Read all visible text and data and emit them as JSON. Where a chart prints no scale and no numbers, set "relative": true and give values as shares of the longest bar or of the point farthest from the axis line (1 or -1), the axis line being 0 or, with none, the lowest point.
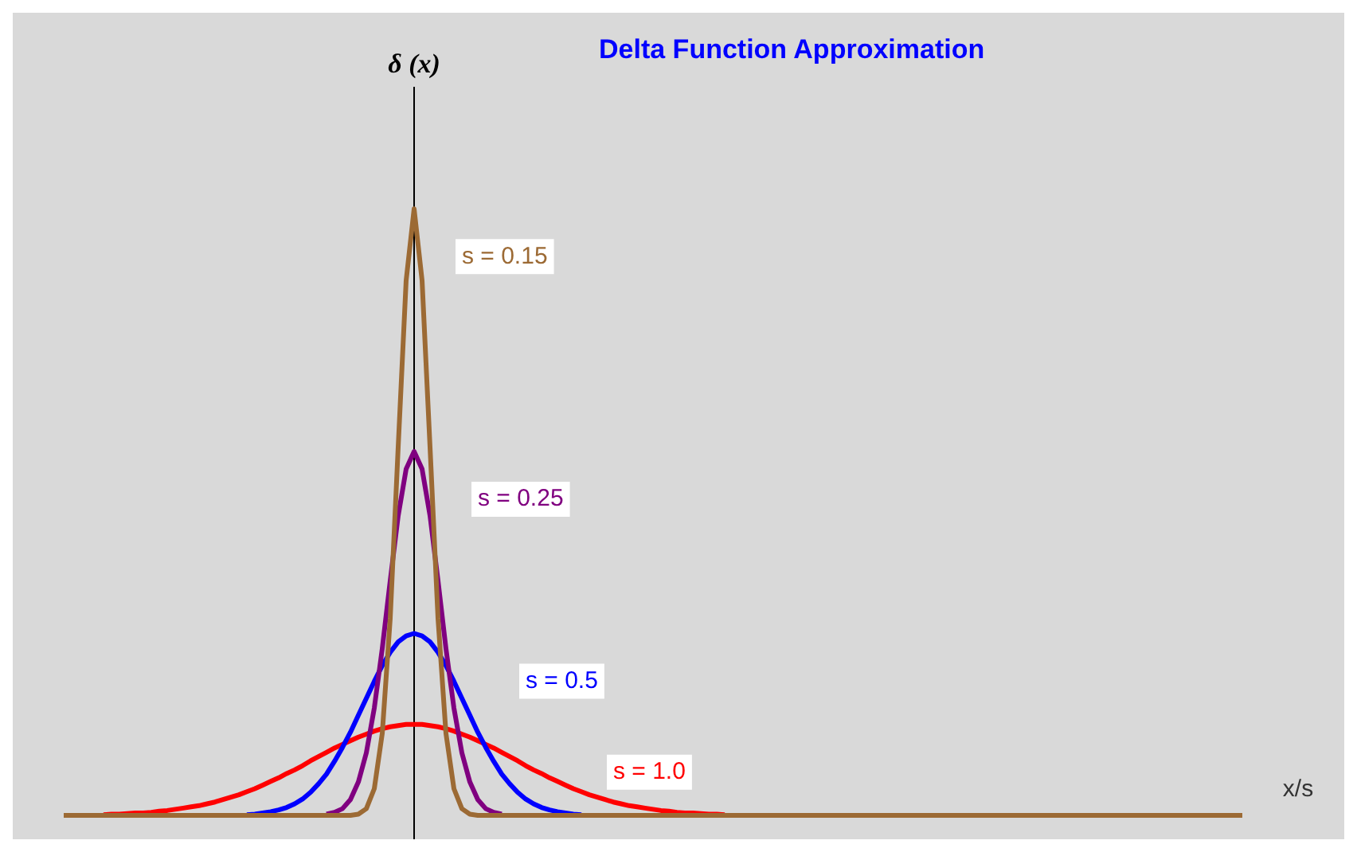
{
  "chart_data": {
    "type": "line",
    "title": "Delta Function Approximation",
    "ylabel": "δ (x)",
    "xlabel": "x/s",
    "relative": true,
    "legend": false,
    "categories": [
      null,
      null,
      null,
      null,
      null,
      null,
      null,
      null,
      null,
      null,
      null,
      null,
      null,
      null,
      null,
      null,
      null,
      null,
      null,
      null,
      null,
      null,
      null,
      null,
      null,
      null,
      null,
      null,
      null,
      null,
      null,
      null,
      null,
      null,
      null,
      null,
      null,
      null,
      null,
      null,
      null,
      null,
      null,
      null,
      null,
      null,
      null,
      null,
      null,
      null,
      null,
      null,
      null,
      null,
      null,
      null,
      null,
      null,
      null,
      null,
      null,
      null,
      null,
      null,
      null,
      null,
      null,
      null,
      null,
      null,
      null,
      null,
      null,
      null,
      null,
      null,
      null,
      null,
      null,
      null,
      null,
      null,
      null,
      null,
      null,
      null,
      null,
      null,
      null,
      null,
      null,
      null,
      null,
      null,
      null,
      null,
      null,
      null,
      null,
      null,
      null,
      null,
      null,
      null,
      null,
      null,
      null,
      null,
      null,
      null,
      null,
      null,
      null,
      null,
      null,
      null,
      null,
      null,
      null,
      null,
      null,
      null,
      null,
      null,
      null,
      null,
      null,
      null,
      null,
      null,
      null,
      null,
      null,
      null,
      null,
      null,
      null,
      null,
      null,
      null,
      null,
      null,
      null,
      null,
      null,
      null,
      null,
      null,
      null
    ],
    "series": [
      {
        "name": "s = 0.15",
        "color": "#9c6a34",
        "values": [
          0,
          0,
          0,
          0,
          0,
          0,
          0,
          0,
          0,
          0,
          0,
          0,
          0,
          0,
          0,
          0,
          0,
          0,
          0,
          0,
          0,
          0,
          0,
          0,
          0,
          0,
          0,
          0,
          0,
          0,
          0,
          0,
          0,
          0,
          0,
          0,
          0,
          0.002,
          0.011,
          0.044,
          0.135,
          0.325,
          0.607,
          0.882,
          1,
          0.882,
          0.607,
          0.325,
          0.135,
          0.044,
          0.011,
          0.002,
          0,
          0,
          0,
          0,
          0,
          0,
          0,
          0,
          0,
          0,
          0,
          0,
          0,
          0,
          0,
          0,
          0,
          0,
          0,
          0,
          0,
          0,
          0,
          0,
          0,
          0,
          0,
          0,
          0,
          0,
          0,
          0,
          0,
          0,
          0,
          0,
          0,
          0,
          0,
          0,
          0,
          0,
          0,
          0,
          0,
          0,
          0,
          0,
          0,
          0,
          0,
          0,
          0,
          0,
          0,
          0,
          0,
          0,
          0,
          0,
          0,
          0,
          0,
          0,
          0,
          0,
          0,
          0,
          0,
          0,
          0,
          0,
          0,
          0,
          0,
          0,
          0,
          0,
          0,
          0,
          0,
          0,
          0,
          0,
          0,
          0,
          0,
          0,
          0,
          0,
          0,
          0,
          0,
          0,
          0,
          0,
          0
        ]
      },
      {
        "name": "s = 0.25",
        "color": "#800080",
        "values": [
          null,
          null,
          null,
          null,
          null,
          null,
          null,
          null,
          null,
          null,
          null,
          null,
          null,
          null,
          null,
          null,
          null,
          null,
          null,
          null,
          null,
          null,
          null,
          null,
          null,
          null,
          null,
          null,
          null,
          null,
          null,
          null,
          null,
          0.002,
          0.005,
          0.011,
          0.026,
          0.055,
          0.103,
          0.177,
          0.275,
          0.387,
          0.494,
          0.571,
          0.6,
          0.571,
          0.494,
          0.387,
          0.275,
          0.177,
          0.103,
          0.055,
          0.026,
          0.011,
          0.005,
          0.002,
          null,
          null,
          null,
          null,
          null,
          null,
          null,
          null,
          null,
          null,
          null,
          null,
          null,
          null,
          null,
          null,
          null,
          null,
          null,
          null,
          null,
          null,
          null,
          null,
          null,
          null,
          null,
          null,
          null,
          null,
          null,
          null,
          null,
          null,
          null,
          null,
          null,
          null,
          null,
          null,
          null,
          null,
          null,
          null,
          null,
          null,
          null,
          null,
          null,
          null,
          null,
          null,
          null,
          null,
          null,
          null,
          null,
          null,
          null,
          null,
          null,
          null,
          null,
          null,
          null,
          null,
          null,
          null,
          null,
          null,
          null,
          null,
          null,
          null,
          null,
          null,
          null,
          null,
          null,
          null,
          null,
          null,
          null,
          null,
          null,
          null,
          null,
          null,
          null,
          null,
          null,
          null,
          null
        ]
      },
      {
        "name": "s = 0.5",
        "color": "#0000ff",
        "values": [
          null,
          null,
          null,
          null,
          null,
          null,
          null,
          null,
          null,
          null,
          null,
          null,
          null,
          null,
          null,
          null,
          null,
          null,
          null,
          null,
          null,
          null,
          null,
          0.001,
          0.002,
          0.004,
          0.006,
          0.009,
          0.013,
          0.019,
          0.027,
          0.038,
          0.052,
          0.068,
          0.089,
          0.112,
          0.137,
          0.165,
          0.193,
          0.221,
          0.247,
          0.269,
          0.286,
          0.296,
          0.3,
          0.296,
          0.286,
          0.269,
          0.247,
          0.221,
          0.193,
          0.165,
          0.137,
          0.112,
          0.089,
          0.068,
          0.052,
          0.038,
          0.027,
          0.019,
          0.013,
          0.009,
          0.006,
          0.004,
          0.002,
          0.001,
          null,
          null,
          null,
          null,
          null,
          null,
          null,
          null,
          null,
          null,
          null,
          null,
          null,
          null,
          null,
          null,
          null,
          null,
          null,
          null,
          null,
          null,
          null,
          null,
          null,
          null,
          null,
          null,
          null,
          null,
          null,
          null,
          null,
          null,
          null,
          null,
          null,
          null,
          null,
          null,
          null,
          null,
          null,
          null,
          null,
          null,
          null,
          null,
          null,
          null,
          null,
          null,
          null,
          null,
          null,
          null,
          null,
          null,
          null,
          null,
          null,
          null,
          null,
          null,
          null,
          null,
          null,
          null,
          null,
          null,
          null,
          null,
          null,
          null,
          null,
          null,
          null,
          null,
          null,
          null,
          null,
          null,
          null
        ]
      },
      {
        "name": "s = 1.0",
        "color": "#ff0000",
        "values": [
          null,
          null,
          null,
          null,
          null,
          0.001,
          0.002,
          0.002,
          0.003,
          0.004,
          0.004,
          0.005,
          0.007,
          0.008,
          0.01,
          0.012,
          0.014,
          0.016,
          0.019,
          0.022,
          0.026,
          0.03,
          0.034,
          0.039,
          0.044,
          0.05,
          0.056,
          0.062,
          0.069,
          0.075,
          0.082,
          0.09,
          0.097,
          0.104,
          0.111,
          0.117,
          0.123,
          0.129,
          0.134,
          0.139,
          0.143,
          0.146,
          0.148,
          0.15,
          0.15,
          0.15,
          0.148,
          0.146,
          0.143,
          0.139,
          0.134,
          0.129,
          0.123,
          0.117,
          0.111,
          0.104,
          0.097,
          0.09,
          0.082,
          0.075,
          0.069,
          0.062,
          0.056,
          0.05,
          0.044,
          0.039,
          0.034,
          0.03,
          0.026,
          0.022,
          0.019,
          0.016,
          0.014,
          0.012,
          0.01,
          0.008,
          0.007,
          0.005,
          0.004,
          0.004,
          0.003,
          0.002,
          0.002,
          0.001,
          null,
          null,
          null,
          null,
          null,
          null,
          null,
          null,
          null,
          null,
          null,
          null,
          null,
          null,
          null,
          null,
          null,
          null,
          null,
          null,
          null,
          null,
          null,
          null,
          null,
          null,
          null,
          null,
          null,
          null,
          null,
          null,
          null,
          null,
          null,
          null,
          null,
          null,
          null,
          null,
          null,
          null,
          null,
          null,
          null,
          null,
          null,
          null,
          null,
          null,
          null,
          null,
          null,
          null,
          null,
          null,
          null,
          null,
          null,
          null,
          null,
          null,
          null,
          null,
          null
        ]
      }
    ]
  }
}
